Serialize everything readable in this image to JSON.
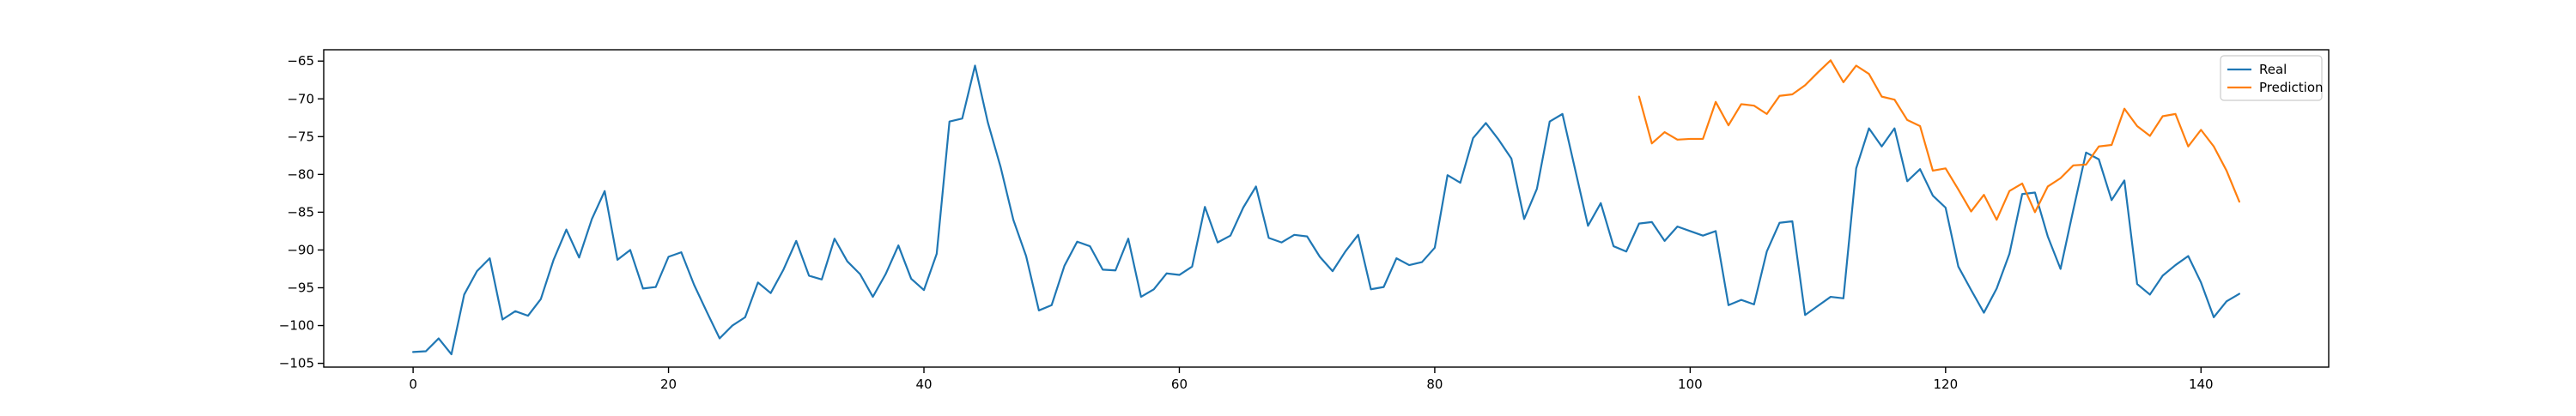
{
  "chart_data": {
    "type": "line",
    "title": "",
    "xlabel": "",
    "ylabel": "",
    "xlim": [
      -7,
      150
    ],
    "ylim": [
      -105.5,
      -63.5
    ],
    "x_ticks": [
      0,
      20,
      40,
      60,
      80,
      100,
      120,
      140
    ],
    "y_ticks": [
      -65,
      -70,
      -75,
      -80,
      -85,
      -90,
      -95,
      -100,
      -105
    ],
    "x_tick_labels": [
      "0",
      "20",
      "40",
      "60",
      "80",
      "100",
      "120",
      "140"
    ],
    "y_tick_labels": [
      "−65",
      "−70",
      "−75",
      "−80",
      "−85",
      "−90",
      "−95",
      "−100",
      "−105"
    ],
    "grid": false,
    "legend": {
      "position": "top-right",
      "visible": true
    },
    "series": [
      {
        "name": "Real",
        "color": "#1f77b4",
        "x_start": 0,
        "values": [
          -103.5,
          -103.4,
          -101.7,
          -103.8,
          -95.9,
          -92.8,
          -91.1,
          -99.2,
          -98.1,
          -98.7,
          -96.5,
          -91.3,
          -87.3,
          -91.0,
          -85.9,
          -82.2,
          -91.3,
          -90.0,
          -95.1,
          -94.9,
          -90.9,
          -90.3,
          -94.6,
          -98.2,
          -101.7,
          -100.0,
          -98.9,
          -94.3,
          -95.7,
          -92.6,
          -88.8,
          -93.4,
          -93.9,
          -88.5,
          -91.5,
          -93.2,
          -96.2,
          -93.2,
          -89.4,
          -93.8,
          -95.3,
          -90.5,
          -73.0,
          -72.6,
          -65.6,
          -73.1,
          -79.0,
          -86.0,
          -90.8,
          -98.0,
          -97.3,
          -92.1,
          -88.9,
          -89.5,
          -92.6,
          -92.7,
          -88.5,
          -96.2,
          -95.2,
          -93.1,
          -93.3,
          -92.2,
          -84.3,
          -89.0,
          -88.1,
          -84.4,
          -81.6,
          -88.4,
          -89.0,
          -88.0,
          -88.2,
          -90.9,
          -92.8,
          -90.2,
          -88.0,
          -95.2,
          -94.9,
          -91.1,
          -92.0,
          -91.6,
          -89.7,
          -80.1,
          -81.1,
          -75.2,
          -73.2,
          -75.4,
          -77.9,
          -85.9,
          -81.9,
          -73.0,
          -72.0,
          -79.4,
          -86.8,
          -83.8,
          -89.5,
          -90.2,
          -86.5,
          -86.3,
          -88.8,
          -86.9,
          -87.5,
          -88.1,
          -87.5,
          -97.3,
          -96.6,
          -97.2,
          -90.2,
          -86.4,
          -86.2,
          -98.6,
          -97.4,
          -96.2,
          -96.4,
          -79.2,
          -73.9,
          -76.3,
          -73.9,
          -80.9,
          -79.3,
          -82.8,
          -84.4,
          -92.2,
          -95.3,
          -98.3,
          -95.1,
          -90.5,
          -82.6,
          -82.4,
          -88.2,
          -92.5,
          -84.7,
          -77.1,
          -78.0,
          -83.4,
          -80.8,
          -94.5,
          -95.9,
          -93.4,
          -92.0,
          -90.8,
          -94.3,
          -98.9,
          -96.8,
          -95.8
        ]
      },
      {
        "name": "Prediction",
        "color": "#ff7f0e",
        "x_start": 96,
        "values": [
          -69.7,
          -75.9,
          -74.4,
          -75.4,
          -75.3,
          -75.3,
          -70.4,
          -73.5,
          -70.7,
          -70.9,
          -72.0,
          -69.6,
          -69.4,
          -68.2,
          -66.5,
          -64.9,
          -67.8,
          -65.6,
          -66.7,
          -69.7,
          -70.1,
          -72.8,
          -73.6,
          -79.5,
          -79.2,
          -82.0,
          -84.9,
          -82.7,
          -86.0,
          -82.2,
          -81.2,
          -85.0,
          -81.6,
          -80.5,
          -78.8,
          -78.7,
          -76.3,
          -76.1,
          -71.3,
          -73.6,
          -74.9,
          -72.3,
          -72.0,
          -76.3,
          -74.1,
          -76.3,
          -79.5,
          -83.6
        ]
      }
    ]
  }
}
